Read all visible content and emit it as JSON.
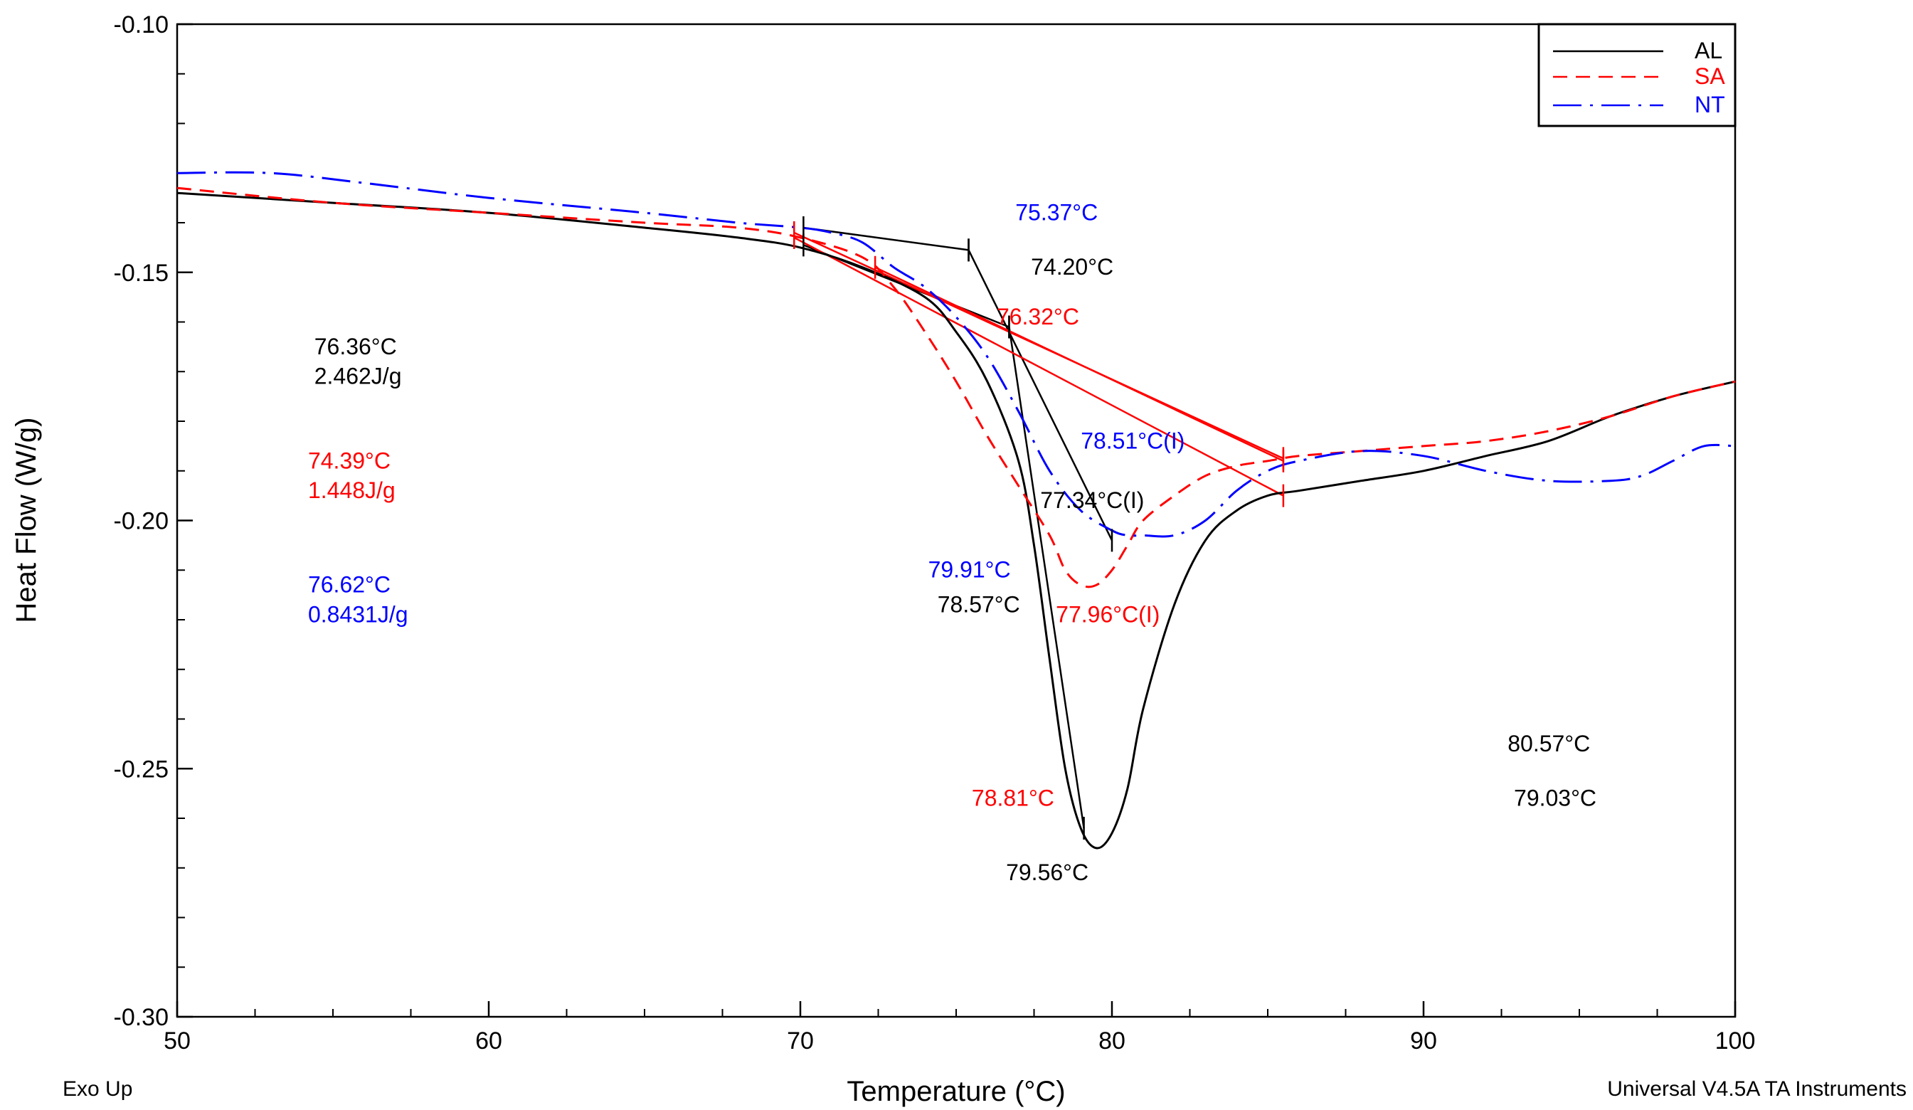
{
  "chart_data": {
    "type": "line",
    "xlabel": "Temperature (°C)",
    "ylabel": "Heat Flow (W/g)",
    "xlim": [
      50,
      100
    ],
    "ylim": [
      -0.3,
      -0.1
    ],
    "x_ticks": [
      50,
      60,
      70,
      80,
      90,
      100
    ],
    "x_tick_labels": [
      "50",
      "60",
      "70",
      "80",
      "90",
      "100"
    ],
    "y_ticks": [
      -0.3,
      -0.25,
      -0.2,
      -0.15,
      -0.1
    ],
    "y_tick_labels": [
      "-0.30",
      "-0.25",
      "-0.20",
      "-0.15",
      "-0.10"
    ],
    "footer_left": "Exo Up",
    "footer_right": "Universal V4.5A TA Instruments",
    "legend_position": "top-right",
    "series": [
      {
        "name": "AL",
        "color": "#000000",
        "dash": "solid",
        "x": [
          50,
          55,
          60,
          65,
          68,
          70,
          72,
          74,
          75,
          76,
          77,
          77.5,
          78,
          78.5,
          79,
          79.5,
          80,
          80.5,
          81,
          82,
          83,
          84,
          85,
          86,
          88,
          90,
          92,
          94,
          96,
          98,
          100
        ],
        "y": [
          -0.134,
          -0.136,
          -0.138,
          -0.141,
          -0.143,
          -0.145,
          -0.149,
          -0.155,
          -0.162,
          -0.172,
          -0.188,
          -0.205,
          -0.228,
          -0.25,
          -0.262,
          -0.266,
          -0.263,
          -0.254,
          -0.238,
          -0.217,
          -0.204,
          -0.198,
          -0.195,
          -0.194,
          -0.192,
          -0.19,
          -0.187,
          -0.184,
          -0.179,
          -0.175,
          -0.172
        ]
      },
      {
        "name": "SA",
        "color": "#ff0000",
        "dash": "dashed",
        "x": [
          50,
          55,
          60,
          65,
          68,
          70,
          72,
          73,
          74,
          75,
          76,
          77,
          78,
          78.5,
          79,
          79.5,
          80,
          80.5,
          81,
          82,
          83,
          84,
          85,
          86,
          88,
          90,
          92,
          94,
          96,
          98,
          100
        ],
        "y": [
          -0.133,
          -0.136,
          -0.138,
          -0.14,
          -0.141,
          -0.143,
          -0.147,
          -0.153,
          -0.162,
          -0.172,
          -0.183,
          -0.193,
          -0.203,
          -0.21,
          -0.213,
          -0.213,
          -0.21,
          -0.205,
          -0.2,
          -0.195,
          -0.191,
          -0.189,
          -0.188,
          -0.187,
          -0.186,
          -0.185,
          -0.184,
          -0.182,
          -0.179,
          -0.175,
          -0.172
        ]
      },
      {
        "name": "NT",
        "color": "#0000ff",
        "dash": "dash-dot",
        "x": [
          50,
          53,
          56,
          60,
          65,
          68,
          70,
          71,
          72,
          73,
          74,
          75,
          76,
          77,
          78,
          79,
          80,
          80.5,
          81,
          82,
          83,
          84,
          85,
          86,
          88,
          90,
          92,
          94,
          96,
          97,
          98,
          99,
          100
        ],
        "y": [
          -0.13,
          -0.13,
          -0.132,
          -0.135,
          -0.138,
          -0.14,
          -0.141,
          -0.142,
          -0.144,
          -0.149,
          -0.153,
          -0.159,
          -0.167,
          -0.178,
          -0.19,
          -0.198,
          -0.202,
          -0.203,
          -0.203,
          -0.203,
          -0.2,
          -0.194,
          -0.19,
          -0.188,
          -0.186,
          -0.187,
          -0.19,
          -0.192,
          -0.192,
          -0.191,
          -0.188,
          -0.185,
          -0.185
        ]
      }
    ],
    "annotations": [
      {
        "text": "76.36°C",
        "color": "#000000",
        "x": 54.4,
        "y": -0.1665
      },
      {
        "text": "2.462J/g",
        "color": "#000000",
        "x": 54.4,
        "y": -0.1725
      },
      {
        "text": "74.39°C",
        "color": "#ff0000",
        "x": 54.2,
        "y": -0.1895
      },
      {
        "text": "1.448J/g",
        "color": "#ff0000",
        "x": 54.2,
        "y": -0.1955
      },
      {
        "text": "76.62°C",
        "color": "#0000ff",
        "x": 54.2,
        "y": -0.2145
      },
      {
        "text": "0.8431J/g",
        "color": "#0000ff",
        "x": 54.2,
        "y": -0.2205
      },
      {
        "text": "75.37°C",
        "color": "#0000ff",
        "x": 76.9,
        "y": -0.1395
      },
      {
        "text": "74.20°C",
        "color": "#000000",
        "x": 77.4,
        "y": -0.1505
      },
      {
        "text": "76.32°C",
        "color": "#ff0000",
        "x": 76.3,
        "y": -0.1605
      },
      {
        "text": "78.51°C(I)",
        "color": "#0000ff",
        "x": 79.0,
        "y": -0.1855
      },
      {
        "text": "77.34°C(I)",
        "color": "#000000",
        "x": 77.7,
        "y": -0.1975
      },
      {
        "text": "79.91°C",
        "color": "#0000ff",
        "x": 74.1,
        "y": -0.2115
      },
      {
        "text": "78.57°C",
        "color": "#000000",
        "x": 74.4,
        "y": -0.2185
      },
      {
        "text": "77.96°C(I)",
        "color": "#ff0000",
        "x": 78.2,
        "y": -0.2205
      },
      {
        "text": "80.57°C",
        "color": "#000000",
        "x": 92.7,
        "y": -0.2465
      },
      {
        "text": "78.81°C",
        "color": "#ff0000",
        "x": 75.5,
        "y": -0.2575
      },
      {
        "text": "79.03°C",
        "color": "#000000",
        "x": 92.9,
        "y": -0.2575
      },
      {
        "text": "79.56°C",
        "color": "#000000",
        "x": 76.6,
        "y": -0.2725
      }
    ],
    "construction_lines": [
      {
        "color": "#000000",
        "x1": 70.1,
        "y1": -0.141,
        "x2": 75.4,
        "y2": -0.1455
      },
      {
        "color": "#000000",
        "x1": 75.4,
        "y1": -0.1455,
        "x2": 80.0,
        "y2": -0.204
      },
      {
        "color": "#000000",
        "x1": 70.1,
        "y1": -0.1445,
        "x2": 76.7,
        "y2": -0.161
      },
      {
        "color": "#000000",
        "x1": 76.7,
        "y1": -0.161,
        "x2": 79.1,
        "y2": -0.262
      },
      {
        "color": "#ff0000",
        "x1": 69.8,
        "y1": -0.142,
        "x2": 85.5,
        "y2": -0.1875
      },
      {
        "color": "#ff0000",
        "x1": 69.8,
        "y1": -0.143,
        "x2": 85.5,
        "y2": -0.195
      },
      {
        "color": "#ff0000",
        "x1": 72.4,
        "y1": -0.149,
        "x2": 85.5,
        "y2": -0.188
      }
    ]
  }
}
